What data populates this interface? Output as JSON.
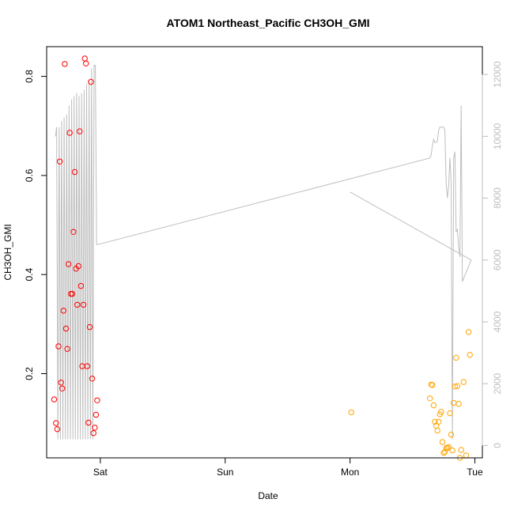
{
  "chart_data": {
    "type": "scatter",
    "title": "ATOM1 Northeast_Pacific CH3OH_GMI",
    "xlabel": "Date",
    "ylabel": "CH3OH_GMI",
    "x_tick_labels": [
      "Sat",
      "Sun",
      "Mon",
      "Tue"
    ],
    "x_tick_values": [
      1,
      2,
      3,
      4
    ],
    "xlim": [
      0.57,
      4.06
    ],
    "ylim": [
      0.03,
      0.86
    ],
    "y_ticks": [
      0.2,
      0.4,
      0.6,
      0.8
    ],
    "y_tick_labels": [
      "0.2",
      "0.4",
      "0.6",
      "0.8"
    ],
    "y2_ticks": [
      0,
      2000,
      4000,
      6000,
      8000,
      10000,
      12000
    ],
    "y2_tick_labels": [
      "0",
      "2000",
      "4000",
      "6000",
      "8000",
      "10000",
      "12000"
    ],
    "y2lim": [
      -400,
      12900
    ],
    "grid": false,
    "colors": {
      "series_red": "#ff0000",
      "series_orange": "#ffa500",
      "altitude_line": "#bebebe"
    },
    "series": [
      {
        "marker": "circle-open",
        "color": "#ff0000",
        "points": [
          [
            0.63,
            0.148
          ],
          [
            0.645,
            0.1
          ],
          [
            0.655,
            0.088
          ],
          [
            0.665,
            0.255
          ],
          [
            0.675,
            0.628
          ],
          [
            0.685,
            0.182
          ],
          [
            0.695,
            0.17
          ],
          [
            0.705,
            0.327
          ],
          [
            0.715,
            0.825
          ],
          [
            0.725,
            0.291
          ],
          [
            0.735,
            0.25
          ],
          [
            0.745,
            0.421
          ],
          [
            0.755,
            0.686
          ],
          [
            0.765,
            0.361
          ],
          [
            0.775,
            0.361
          ],
          [
            0.785,
            0.486
          ],
          [
            0.795,
            0.607
          ],
          [
            0.805,
            0.412
          ],
          [
            0.815,
            0.339
          ],
          [
            0.825,
            0.417
          ],
          [
            0.835,
            0.689
          ],
          [
            0.845,
            0.377
          ],
          [
            0.855,
            0.215
          ],
          [
            0.865,
            0.339
          ],
          [
            0.875,
            0.836
          ],
          [
            0.885,
            0.826
          ],
          [
            0.895,
            0.215
          ],
          [
            0.905,
            0.101
          ],
          [
            0.915,
            0.294
          ],
          [
            0.925,
            0.789
          ],
          [
            0.935,
            0.19
          ],
          [
            0.945,
            0.08
          ],
          [
            0.955,
            0.091
          ],
          [
            0.965,
            0.117
          ],
          [
            0.975,
            0.146
          ]
        ]
      },
      {
        "marker": "circle-open",
        "color": "#ffa500",
        "points": [
          [
            3.01,
            0.122
          ],
          [
            3.64,
            0.15
          ],
          [
            3.65,
            0.178
          ],
          [
            3.66,
            0.177
          ],
          [
            3.67,
            0.136
          ],
          [
            3.68,
            0.103
          ],
          [
            3.69,
            0.095
          ],
          [
            3.7,
            0.085
          ],
          [
            3.71,
            0.103
          ],
          [
            3.72,
            0.118
          ],
          [
            3.73,
            0.123
          ],
          [
            3.74,
            0.062
          ],
          [
            3.75,
            0.04
          ],
          [
            3.76,
            0.042
          ],
          [
            3.77,
            0.05
          ],
          [
            3.78,
            0.05
          ],
          [
            3.79,
            0.052
          ],
          [
            3.8,
            0.12
          ],
          [
            3.81,
            0.077
          ],
          [
            3.82,
            0.045
          ],
          [
            3.83,
            0.141
          ],
          [
            3.84,
            0.174
          ],
          [
            3.85,
            0.232
          ],
          [
            3.86,
            0.175
          ],
          [
            3.87,
            0.139
          ],
          [
            3.88,
            0.03
          ],
          [
            3.89,
            0.046
          ],
          [
            3.91,
            0.183
          ],
          [
            3.93,
            0.035
          ],
          [
            3.95,
            0.284
          ],
          [
            3.96,
            0.238
          ]
        ]
      }
    ],
    "altitude_line": {
      "axis": "right",
      "segments": [
        {
          "x": [
            0.64,
            0.65,
            0.66,
            0.67,
            0.68,
            0.69,
            0.7,
            0.71,
            0.72,
            0.73,
            0.74,
            0.75,
            0.76,
            0.77,
            0.78,
            0.79,
            0.8,
            0.81,
            0.82,
            0.83,
            0.84,
            0.85,
            0.86,
            0.87,
            0.88,
            0.89,
            0.9,
            0.91,
            0.92,
            0.93,
            0.94,
            0.95,
            0.96,
            0.97,
            0.98
          ],
          "y": [
            10000,
            10300,
            200,
            10300,
            200,
            10500,
            200,
            10600,
            200,
            10700,
            200,
            11000,
            200,
            11200,
            200,
            11300,
            200,
            11400,
            200,
            11300,
            200,
            11400,
            200,
            11500,
            200,
            11700,
            200,
            11800,
            200,
            12200,
            200,
            12300,
            12300,
            6500,
            6500
          ]
        },
        {
          "x": [
            0.98,
            3.64,
            3.65,
            3.66,
            3.67,
            3.68,
            3.69,
            3.7,
            3.71,
            3.72,
            3.73,
            3.74,
            3.75,
            3.76,
            3.77,
            3.78,
            3.79,
            3.8,
            3.81,
            3.82,
            3.83,
            3.84,
            3.85,
            3.86,
            3.87,
            3.88,
            3.89,
            3.9,
            3.91,
            3.92,
            3.93,
            3.94,
            3.95,
            3.96,
            3.97
          ],
          "y": [
            6500,
            9300,
            9400,
            9700,
            9900,
            9800,
            9800,
            9850,
            10200,
            10300,
            10300,
            10300,
            10300,
            10200,
            8500,
            8000,
            8400,
            9300,
            8500,
            200,
            9300,
            9500,
            6900,
            7000,
            6400,
            6100,
            11000,
            5300,
            5400,
            5500,
            5600,
            5700,
            5800,
            5900,
            6000
          ]
        },
        {
          "x": [
            3.0,
            3.97
          ],
          "y": [
            8200,
            6000
          ]
        }
      ]
    }
  }
}
